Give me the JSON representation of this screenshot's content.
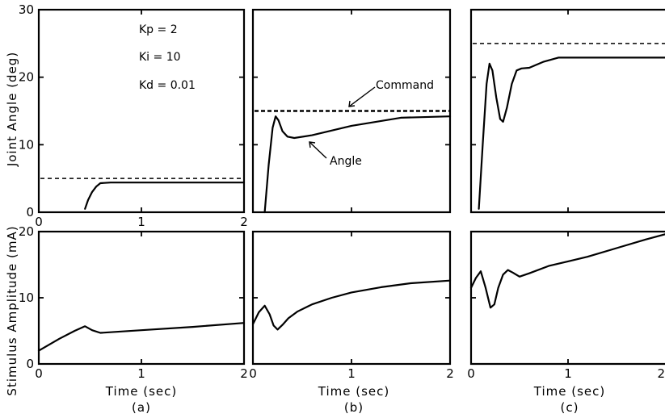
{
  "chart_data": [
    {
      "type": "line",
      "panel": "(a)",
      "ylabel": "Joint Angle (deg)",
      "xlim": [
        0,
        2
      ],
      "ylim": [
        0,
        30
      ],
      "x_ticks": [
        "0",
        "1",
        "2"
      ],
      "y_ticks": [
        "0",
        "10",
        "20",
        "30"
      ],
      "parameters": [
        "Kp = 2",
        "Ki = 10",
        "Kd = 0.01"
      ],
      "command": 5,
      "series": [
        {
          "x": [
            0.45,
            0.48,
            0.52,
            0.56,
            0.6,
            0.7,
            1.0,
            1.5,
            2.0
          ],
          "y": [
            0.5,
            1.8,
            3.0,
            3.8,
            4.3,
            4.4,
            4.4,
            4.4,
            4.4
          ]
        }
      ]
    },
    {
      "type": "line",
      "panel": "(b)",
      "xlim": [
        0,
        2
      ],
      "ylim": [
        0,
        30
      ],
      "command": 15,
      "annotations": [
        "Command",
        "Angle"
      ],
      "series": [
        {
          "x": [
            0.12,
            0.16,
            0.2,
            0.23,
            0.26,
            0.3,
            0.35,
            0.42,
            0.6,
            1.0,
            1.5,
            2.0
          ],
          "y": [
            0.0,
            7.0,
            12.5,
            14.2,
            13.6,
            12.0,
            11.2,
            11.0,
            11.4,
            12.8,
            14.0,
            14.2
          ]
        }
      ]
    },
    {
      "type": "line",
      "panel": "(c)",
      "xlim": [
        0,
        2
      ],
      "ylim": [
        0,
        30
      ],
      "command": 25,
      "series": [
        {
          "x": [
            0.08,
            0.12,
            0.16,
            0.19,
            0.22,
            0.26,
            0.3,
            0.33,
            0.37,
            0.42,
            0.47,
            0.52,
            0.6,
            0.75,
            0.9,
            1.2,
            1.6,
            2.0
          ],
          "y": [
            0.5,
            10.0,
            19.0,
            22.0,
            21.0,
            17.0,
            13.8,
            13.4,
            15.5,
            19.0,
            21.0,
            21.3,
            21.4,
            22.3,
            22.9,
            22.9,
            22.9,
            22.9
          ]
        }
      ]
    },
    {
      "type": "line",
      "panel": "(a)",
      "xlabel": "Time (sec)",
      "ylabel": "Stimulus Amplitude (mA)",
      "xlim": [
        0,
        2
      ],
      "ylim": [
        0,
        20
      ],
      "x_ticks": [
        "0",
        "1",
        "2"
      ],
      "y_ticks": [
        "0",
        "10",
        "20"
      ],
      "caption": "(a)",
      "series": [
        {
          "x": [
            0.0,
            0.2,
            0.35,
            0.45,
            0.52,
            0.6,
            1.0,
            1.5,
            2.0
          ],
          "y": [
            2.0,
            3.8,
            5.0,
            5.7,
            5.1,
            4.7,
            5.1,
            5.6,
            6.2
          ]
        }
      ]
    },
    {
      "type": "line",
      "panel": "(b)",
      "xlabel": "Time (sec)",
      "xlim": [
        0,
        2
      ],
      "ylim": [
        0,
        20
      ],
      "x_ticks": [
        "0",
        "1",
        "2"
      ],
      "caption": "(b)",
      "series": [
        {
          "x": [
            0.0,
            0.06,
            0.12,
            0.17,
            0.21,
            0.25,
            0.3,
            0.36,
            0.45,
            0.6,
            0.8,
            1.0,
            1.3,
            1.6,
            2.0
          ],
          "y": [
            6.0,
            7.8,
            8.8,
            7.5,
            5.8,
            5.2,
            5.9,
            6.9,
            7.9,
            9.0,
            10.0,
            10.8,
            11.6,
            12.2,
            12.6
          ]
        }
      ]
    },
    {
      "type": "line",
      "panel": "(c)",
      "xlabel": "Time (sec)",
      "xlim": [
        0,
        2
      ],
      "ylim": [
        0,
        20
      ],
      "x_ticks": [
        "0",
        "1",
        "2"
      ],
      "caption": "(c)",
      "series": [
        {
          "x": [
            0.0,
            0.05,
            0.1,
            0.15,
            0.2,
            0.24,
            0.28,
            0.33,
            0.38,
            0.43,
            0.5,
            0.6,
            0.8,
            1.0,
            1.2,
            1.5,
            1.8,
            2.0
          ],
          "y": [
            11.5,
            13.0,
            14.0,
            11.5,
            8.5,
            9.0,
            11.5,
            13.5,
            14.2,
            13.8,
            13.2,
            13.7,
            14.8,
            15.5,
            16.2,
            17.5,
            18.8,
            19.6
          ]
        }
      ]
    }
  ]
}
